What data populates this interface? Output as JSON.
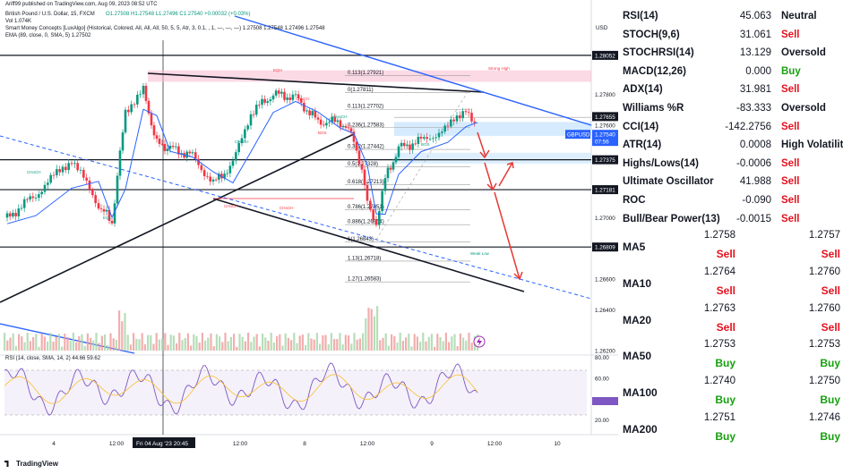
{
  "header": {
    "published": "Ariff99 published on TradingView.com, Aug 09, 2023 08:52 UTC",
    "title": "British Pound / U.S. Dollar, 15, FXCM",
    "ohlc": "O1.27508  H1.27548  L1.27496  C1.27540  +0.00032 (+0.03%)",
    "vol": "Vol  1.074K",
    "smc": "Smart Money Concepts [LuxAlgo] (Historical, Colored, All, All, All, 50, 5, 5, Atr, 3, 0.1, , 1, —, —, —)  1.27508  1.27548  1.27496  1.27548",
    "ema": "EMA (89, close, 0, SMA, 5)  1.27502",
    "rsi_header": "RSI (14, close, SMA, 14, 2)  44.66  59.62"
  },
  "price_axis": {
    "currency": "USD",
    "labels": [
      "1.28052",
      "1.27800",
      "1.27655",
      "1.27600",
      "1.27540",
      "07:56",
      "1.27375",
      "1.27181",
      "1.27000",
      "1.26809",
      "1.26600",
      "1.26400",
      "1.26200"
    ],
    "symbol_tag": "GBPUSD",
    "rsi_ticks": [
      "80.00",
      "60.00",
      "40.00",
      "20.00"
    ]
  },
  "time_axis": {
    "labels": [
      "4",
      "12:00",
      "Fri 04 Aug '23  20:45",
      "12:00",
      "8",
      "12:00",
      "9",
      "12:00",
      "10"
    ]
  },
  "fib_levels": [
    {
      "label": "0.113(1.27921)",
      "price": 1.27921
    },
    {
      "label": "0(1.27811)",
      "price": 1.27811
    },
    {
      "label": "0.113(1.27702)",
      "price": 1.27702
    },
    {
      "label": "0.236(1.27583)",
      "price": 1.27583
    },
    {
      "label": "0.382(1.27442)",
      "price": 1.27442
    },
    {
      "label": "0.5(1.27328)",
      "price": 1.27328
    },
    {
      "label": "0.618(1.27213)",
      "price": 1.27213
    },
    {
      "label": "0.786(1.27051)",
      "price": 1.27051
    },
    {
      "label": "0.886(1.26954)",
      "price": 1.26954
    },
    {
      "label": "1(1.26843)",
      "price": 1.26843
    },
    {
      "label": "1.13(1.26718)",
      "price": 1.26718
    },
    {
      "label": "1.27(1.26583)",
      "price": 1.26583
    }
  ],
  "smc_labels": {
    "strong_high": "Strong High",
    "choch": "CHoCH",
    "bos": "BOS",
    "eqh": "EQH",
    "eql": "EQL",
    "weak_low": "Weak Low"
  },
  "indicators": [
    {
      "name": "RSI(14)",
      "value": "45.063",
      "signal": "Neutral",
      "kind": "neutral"
    },
    {
      "name": "STOCH(9,6)",
      "value": "31.061",
      "signal": "Sell",
      "kind": "sell"
    },
    {
      "name": "STOCHRSI(14)",
      "value": "13.129",
      "signal": "Oversold",
      "kind": "oversold"
    },
    {
      "name": "MACD(12,26)",
      "value": "0.000",
      "signal": "Buy",
      "kind": "buy"
    },
    {
      "name": "ADX(14)",
      "value": "31.981",
      "signal": "Sell",
      "kind": "sell"
    },
    {
      "name": "Williams %R",
      "value": "-83.333",
      "signal": "Oversold",
      "kind": "oversold"
    },
    {
      "name": "CCI(14)",
      "value": "-142.2756",
      "signal": "Sell",
      "kind": "sell"
    },
    {
      "name": "ATR(14)",
      "value": "0.0008",
      "signal": "High Volatility",
      "kind": "hv"
    },
    {
      "name": "Highs/Lows(14)",
      "value": "-0.0006",
      "signal": "Sell",
      "kind": "sell"
    },
    {
      "name": "Ultimate Oscillator",
      "value": "41.988",
      "signal": "Sell",
      "kind": "sell"
    },
    {
      "name": "ROC",
      "value": "-0.090",
      "signal": "Sell",
      "kind": "sell"
    },
    {
      "name": "Bull/Bear Power(13)",
      "value": "-0.0015",
      "signal": "Sell",
      "kind": "sell"
    }
  ],
  "moving_averages": [
    {
      "name": "MA5",
      "simple": "1.2758",
      "simple_signal": "Sell",
      "exp": "1.2757",
      "exp_signal": "Sell"
    },
    {
      "name": "MA10",
      "simple": "1.2764",
      "simple_signal": "Sell",
      "exp": "1.2760",
      "exp_signal": "Sell"
    },
    {
      "name": "MA20",
      "simple": "1.2763",
      "simple_signal": "Sell",
      "exp": "1.2760",
      "exp_signal": "Sell"
    },
    {
      "name": "MA50",
      "simple": "1.2753",
      "simple_signal": "Buy",
      "exp": "1.2753",
      "exp_signal": "Buy"
    },
    {
      "name": "MA100",
      "simple": "1.2740",
      "simple_signal": "Buy",
      "exp": "1.2750",
      "exp_signal": "Buy"
    },
    {
      "name": "MA200",
      "simple": "1.2751",
      "simple_signal": "Buy",
      "exp": "1.2746",
      "exp_signal": "Buy"
    }
  ],
  "brand": "TradingView",
  "chart_data": {
    "type": "line",
    "title": "British Pound / U.S. Dollar, 15, FXCM",
    "xlabel": "",
    "ylabel": "",
    "ylim": [
      1.2612,
      1.2815
    ],
    "x": [
      "4",
      "12:00",
      "Fri 04 Aug '23",
      "12:00",
      "8",
      "12:00",
      "9",
      "12:00"
    ],
    "series": [
      {
        "name": "",
        "values": [
          1.27,
          1.277,
          1.2745,
          1.2765,
          1.2755,
          1.2696,
          1.2745,
          1.2754
        ]
      }
    ],
    "fib_retracement": [
      1.27921,
      1.27811,
      1.27702,
      1.27583,
      1.27442,
      1.27328,
      1.27213,
      1.27051,
      1.26954,
      1.26843,
      1.26718,
      1.26583
    ],
    "last_price": 1.2754,
    "rsi": {
      "name": "",
      "last": 44.66,
      "ylim": [
        20,
        80
      ],
      "levels": [
        70,
        30
      ]
    },
    "colors": {
      "up": "#089981",
      "down": "#f23645",
      "rsi": "#7e57c2",
      "trend": "#2962ff"
    }
  }
}
